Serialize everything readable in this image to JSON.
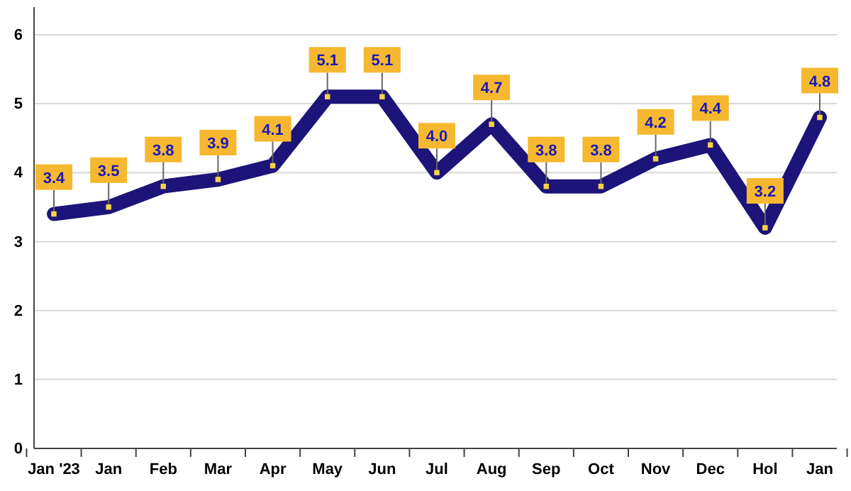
{
  "chart_data": {
    "type": "line",
    "categories": [
      "Jan '23",
      "Jan",
      "Feb",
      "Mar",
      "Apr",
      "May",
      "Jun",
      "Jul",
      "Aug",
      "Sep",
      "Oct",
      "Nov",
      "Dec",
      "Hol",
      "Jan"
    ],
    "series": [
      {
        "color": "#1c1478",
        "values": [
          3.4,
          3.5,
          3.8,
          3.9,
          4.1,
          5.1,
          5.1,
          4.0,
          4.7,
          3.8,
          3.8,
          4.2,
          4.4,
          3.2,
          4.8
        ]
      }
    ],
    "value_labels": [
      "3.4",
      "3.5",
      "3.8",
      "3.9",
      "4.1",
      "5.1",
      "5.1",
      "4.0",
      "4.7",
      "3.8",
      "3.8",
      "4.2",
      "4.4",
      "3.2",
      "4.8"
    ],
    "ylim": [
      0,
      6.4
    ],
    "yticks": [
      0,
      1,
      2,
      3,
      4,
      5,
      6
    ],
    "grid": "y",
    "marker": "square",
    "line_style": "solid"
  }
}
